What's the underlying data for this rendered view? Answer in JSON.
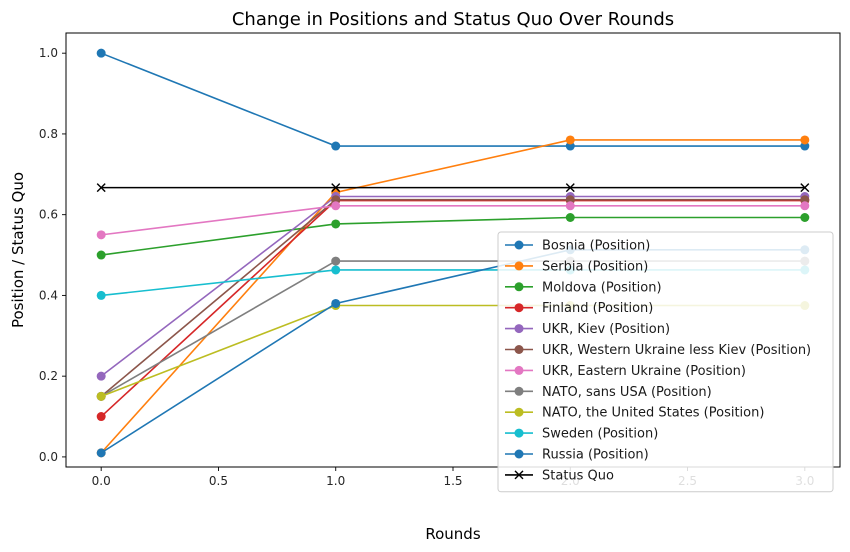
{
  "chart_data": {
    "type": "line",
    "title": "Change in Positions and Status Quo Over Rounds",
    "xlabel": "Rounds",
    "ylabel": "Position / Status Quo",
    "xlim": [
      -0.15,
      3.15
    ],
    "ylim": [
      -0.025,
      1.05
    ],
    "x_ticks": [
      0.0,
      0.5,
      1.0,
      1.5,
      2.0,
      2.5,
      3.0
    ],
    "x_tick_labels": [
      "0.0",
      "0.5",
      "1.0",
      "1.5",
      "2.0",
      "2.5",
      "3.0"
    ],
    "y_ticks": [
      0.0,
      0.2,
      0.4,
      0.6,
      0.8,
      1.0
    ],
    "y_tick_labels": [
      "0.0",
      "0.2",
      "0.4",
      "0.6",
      "0.8",
      "1.0"
    ],
    "grid": false,
    "legend_position": "lower-right",
    "x": [
      0,
      1,
      2,
      3
    ],
    "series": [
      {
        "name": "Bosnia (Position)",
        "color": "#1f77b4",
        "marker": "o",
        "values": [
          1.0,
          0.77,
          0.77,
          0.77
        ]
      },
      {
        "name": "Serbia (Position)",
        "color": "#ff7f0e",
        "marker": "o",
        "values": [
          0.01,
          0.655,
          0.785,
          0.785
        ]
      },
      {
        "name": "Moldova (Position)",
        "color": "#2ca02c",
        "marker": "o",
        "values": [
          0.5,
          0.577,
          0.593,
          0.593
        ]
      },
      {
        "name": "Finland (Position)",
        "color": "#d62728",
        "marker": "o",
        "values": [
          0.1,
          0.635,
          0.635,
          0.635
        ]
      },
      {
        "name": "UKR, Kiev (Position)",
        "color": "#9467bd",
        "marker": "o",
        "values": [
          0.2,
          0.645,
          0.645,
          0.645
        ]
      },
      {
        "name": "UKR, Western Ukraine less Kiev (Position)",
        "color": "#8c564b",
        "marker": "o",
        "values": [
          0.15,
          0.637,
          0.637,
          0.637
        ]
      },
      {
        "name": "UKR, Eastern Ukraine (Position)",
        "color": "#e377c2",
        "marker": "o",
        "values": [
          0.55,
          0.622,
          0.622,
          0.622
        ]
      },
      {
        "name": "NATO, sans USA (Position)",
        "color": "#7f7f7f",
        "marker": "o",
        "values": [
          0.15,
          0.485,
          0.485,
          0.485
        ]
      },
      {
        "name": "NATO, the United States (Position)",
        "color": "#bcbd22",
        "marker": "o",
        "values": [
          0.15,
          0.375,
          0.375,
          0.375
        ]
      },
      {
        "name": "Sweden (Position)",
        "color": "#17becf",
        "marker": "o",
        "values": [
          0.4,
          0.463,
          0.463,
          0.463
        ]
      },
      {
        "name": "Russia (Position)",
        "color": "#1f77b4",
        "marker": "o",
        "values": [
          0.01,
          0.38,
          0.513,
          0.513
        ]
      },
      {
        "name": "Status Quo",
        "color": "#000000",
        "marker": "x",
        "values": [
          0.667,
          0.667,
          0.667,
          0.667
        ]
      }
    ]
  }
}
